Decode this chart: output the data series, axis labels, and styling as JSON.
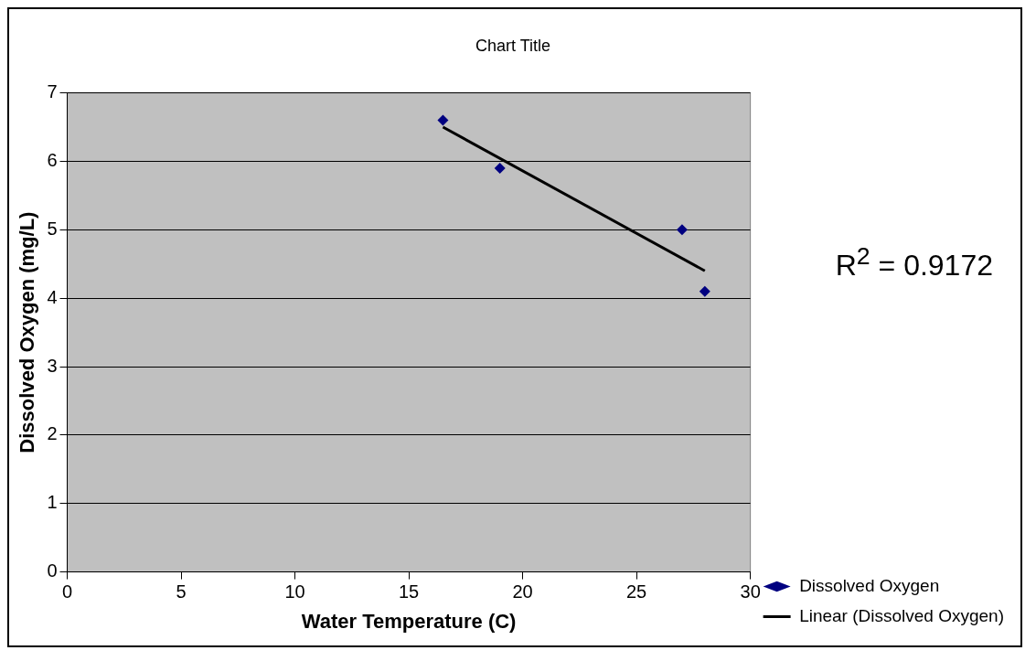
{
  "chart_data": {
    "type": "scatter",
    "title": "Chart Title",
    "xlabel": "Water Temperature (C)",
    "ylabel": "Dissolved Oxygen (mg/L)",
    "xlim": [
      0,
      30
    ],
    "xticks": [
      0,
      5,
      10,
      15,
      20,
      25,
      30
    ],
    "ylim": [
      0,
      7
    ],
    "yticks": [
      0,
      1,
      2,
      3,
      4,
      5,
      6,
      7
    ],
    "grid": "y",
    "legend": "bottom right",
    "annotations": [
      "R$^{2}$ = 0.9172"
    ],
    "series": [
      {
        "name": "Dissolved Oxygen",
        "marker": "diamond",
        "color": "#000080",
        "x": [
          16.5,
          19,
          27,
          28
        ],
        "values": [
          6.6,
          5.9,
          5.0,
          4.1
        ]
      },
      {
        "name": "Linear (Dissolved Oxygen)",
        "type": "line",
        "marker": "none",
        "color": "#000000",
        "x": [
          16.5,
          28
        ],
        "values": [
          6.5,
          4.4
        ]
      }
    ]
  }
}
